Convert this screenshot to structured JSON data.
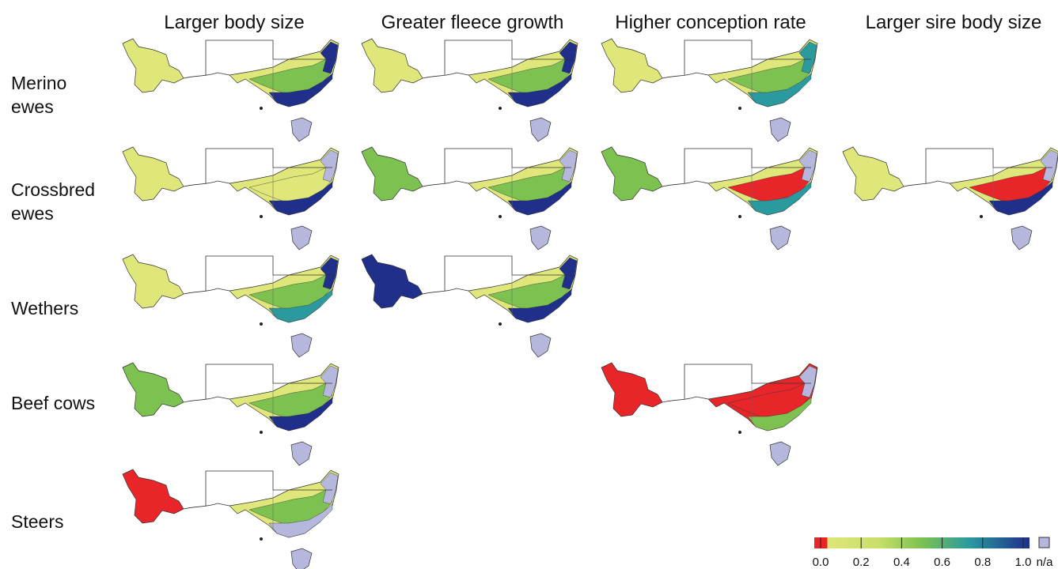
{
  "columns": [
    "Larger body size",
    "Greater fleece growth",
    "Higher conception rate",
    "Larger sire body size"
  ],
  "rows": [
    "Merino ewes",
    "Crossbred ewes",
    "Wethers",
    "Beef cows",
    "Steers"
  ],
  "legend": {
    "ticks": [
      {
        "value": 0,
        "label": "0.0"
      },
      {
        "value": 0.2,
        "label": "0.2"
      },
      {
        "value": 0.4,
        "label": "0.4"
      },
      {
        "value": 0.6,
        "label": "0.6"
      },
      {
        "value": 0.8,
        "label": "0.8"
      },
      {
        "value": 1,
        "label": "1.0"
      }
    ],
    "na_label": "n/a"
  }
}
